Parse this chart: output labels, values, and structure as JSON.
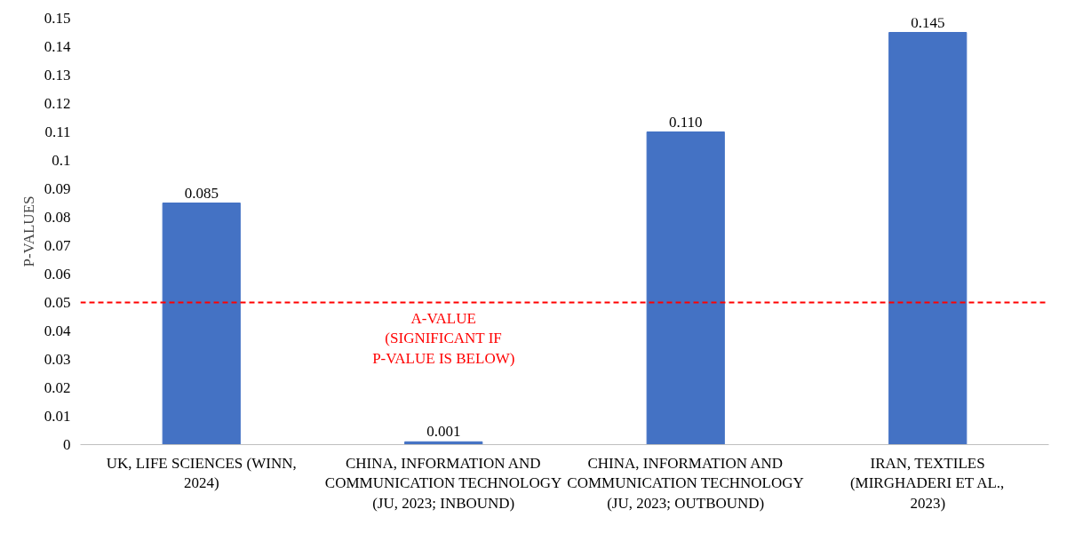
{
  "chart_data": {
    "type": "bar",
    "ylabel": "P-VALUES",
    "categories": [
      "UK, LIFE SCIENCES (WINN, 2024)",
      "CHINA, INFORMATION AND COMMUNICATION TECHNOLOGY (JU, 2023; INBOUND)",
      "CHINA, INFORMATION AND COMMUNICATION TECHNOLOGY (JU, 2023; OUTBOUND)",
      "IRAN, TEXTILES (MIRGHADERI ET AL., 2023)"
    ],
    "values": [
      0.085,
      0.001,
      0.11,
      0.145
    ],
    "value_labels": [
      "0.085",
      "0.001",
      "0.110",
      "0.145"
    ],
    "color": "#4472c4",
    "ylim": [
      0,
      0.15
    ],
    "yticks": [
      0,
      0.01,
      0.02,
      0.03,
      0.04,
      0.05,
      0.06,
      0.07,
      0.08,
      0.09,
      0.1,
      0.11,
      0.12,
      0.13,
      0.14,
      0.15
    ],
    "ref_lines": [
      {
        "axis": "y",
        "value": 0.05,
        "label": "A-VALUE (SIGNIFICANT IF P-VALUE IS BELOW)",
        "color": "#ff0000",
        "line_style": "dashed"
      }
    ],
    "grid": false
  }
}
